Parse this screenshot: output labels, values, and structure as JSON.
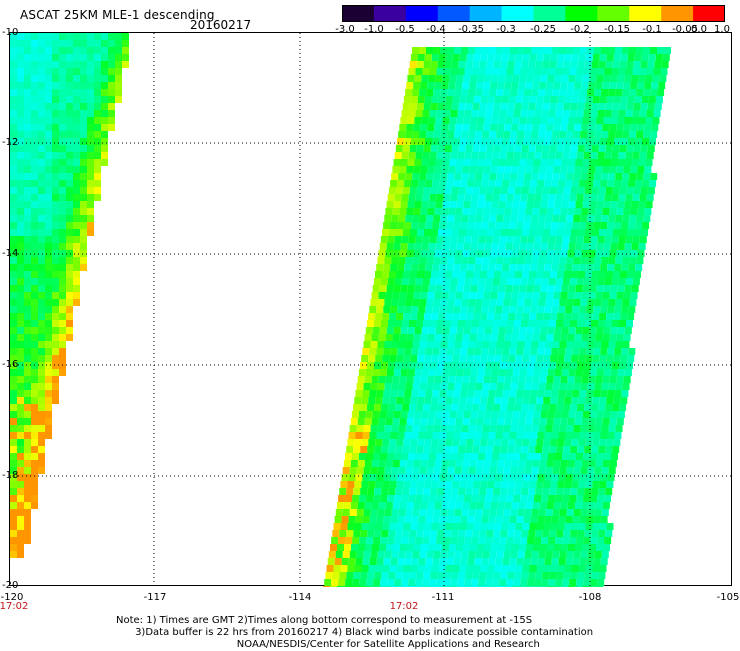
{
  "header": {
    "title": "ASCAT 25KM MLE-1 descending",
    "date": "20160217"
  },
  "colorbar": {
    "labels": [
      "-3.0",
      "-1.0",
      "-0.5",
      "-0.4",
      "-0.35",
      "-0.3",
      "-0.25",
      "-0.2",
      "-0.15",
      "-0.1",
      "-0.05",
      "0.0",
      "1.0"
    ],
    "colors": [
      "#1a0033",
      "#3b00a0",
      "#0000ff",
      "#005aff",
      "#00b4ff",
      "#00ffff",
      "#00ff96",
      "#00ff00",
      "#64ff00",
      "#ffff00",
      "#ff9600",
      "#ff0000"
    ]
  },
  "axes": {
    "y_ticks": [
      "-10",
      "-12",
      "-14",
      "-16",
      "-18",
      "-20"
    ],
    "x_ticks": [
      "-120",
      "-117",
      "-114",
      "-111",
      "-108",
      "-105"
    ],
    "lon_range": [
      -120,
      -105
    ],
    "lat_range": [
      -10,
      -20
    ]
  },
  "times": [
    "17:02",
    "17:02"
  ],
  "notes": "Note: 1) Times are GMT 2)Times along bottom correspond to measurement at -15S\n      3)Data buffer is 22 hrs from 20160217 4) Black wind barbs indicate possible contamination\n                                      NOAA/NESDIS/Center for Satellite Applications and Research"
}
